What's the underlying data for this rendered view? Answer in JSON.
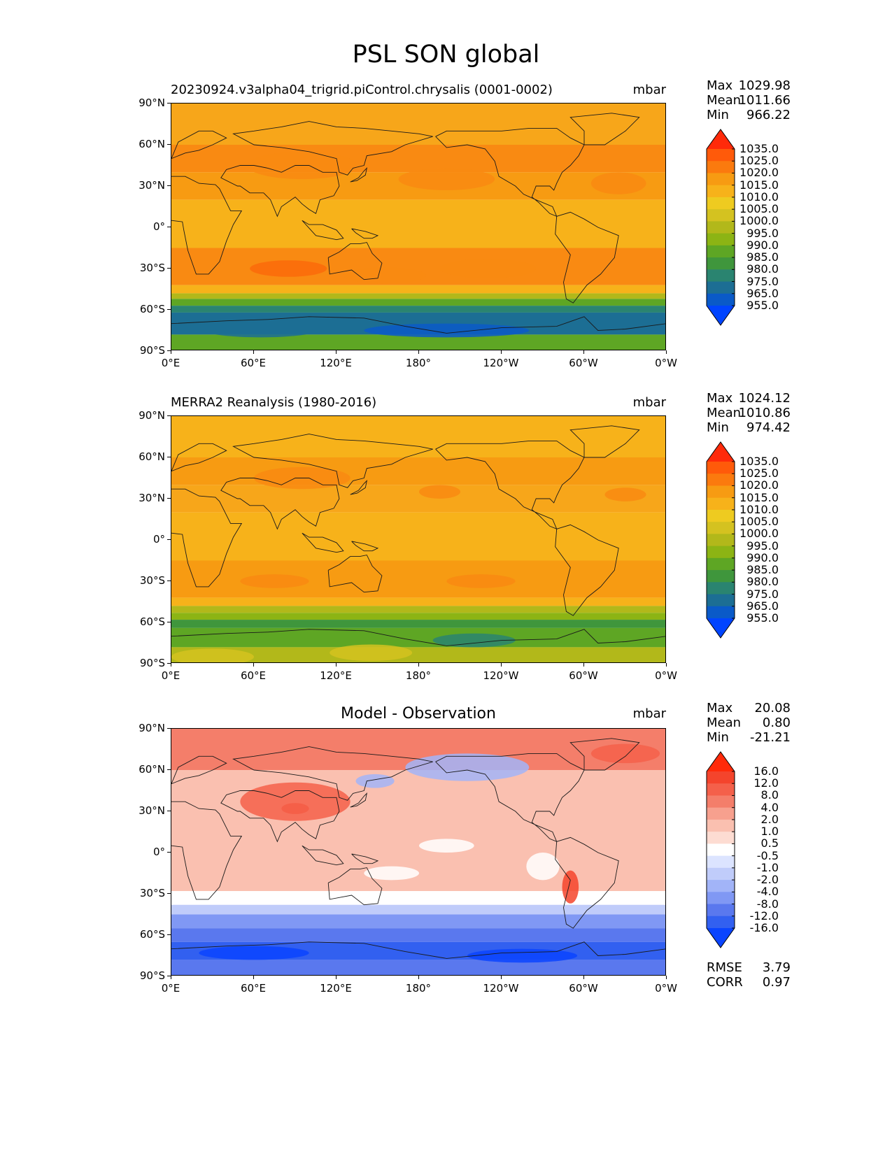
{
  "title": "PSL SON global",
  "x_ticks": [
    "0°E",
    "60°E",
    "120°E",
    "180°",
    "120°W",
    "60°W",
    "0°W"
  ],
  "y_ticks": [
    "90°N",
    "60°N",
    "30°N",
    "0°",
    "30°S",
    "60°S",
    "90°S"
  ],
  "stat_labels": {
    "max": "Max",
    "mean": "Mean",
    "min": "Min",
    "rmse": "RMSE",
    "corr": "CORR"
  },
  "panels": [
    {
      "id": "test",
      "title": "20230924.v3alpha04_trigrid.piControl.chrysalis (0001-0002)",
      "units": "mbar",
      "stats": {
        "max": "1029.98",
        "mean": "1011.66",
        "min": "966.22"
      },
      "colorbar": {
        "labels": [
          "1035.0",
          "1025.0",
          "1020.0",
          "1015.0",
          "1010.0",
          "1005.0",
          "1000.0",
          "995.0",
          "990.0",
          "985.0",
          "980.0",
          "975.0",
          "965.0",
          "955.0"
        ],
        "colors": [
          "#ff2a0a",
          "#ff5a0a",
          "#fb7a0e",
          "#f79b12",
          "#f7b21a",
          "#eecb20",
          "#d4c220",
          "#b2b81a",
          "#8cb414",
          "#5ea624",
          "#3f963c",
          "#2a8470",
          "#1c6e94",
          "#0a5ac8",
          "#0044ff"
        ]
      }
    },
    {
      "id": "ref",
      "title": "MERRA2 Reanalysis (1980-2016)",
      "units": "mbar",
      "stats": {
        "max": "1024.12",
        "mean": "1010.86",
        "min": "974.42"
      },
      "colorbar": {
        "labels": [
          "1035.0",
          "1025.0",
          "1020.0",
          "1015.0",
          "1010.0",
          "1005.0",
          "1000.0",
          "995.0",
          "990.0",
          "985.0",
          "980.0",
          "975.0",
          "965.0",
          "955.0"
        ],
        "colors": [
          "#ff2a0a",
          "#ff5a0a",
          "#fb7a0e",
          "#f79b12",
          "#f7b21a",
          "#eecb20",
          "#d4c220",
          "#b2b81a",
          "#8cb414",
          "#5ea624",
          "#3f963c",
          "#2a8470",
          "#1c6e94",
          "#0a5ac8",
          "#0044ff"
        ]
      }
    },
    {
      "id": "diff",
      "title": "Model - Observation",
      "units": "mbar",
      "stats": {
        "max": "20.08",
        "mean": "0.80",
        "min": "-21.21"
      },
      "rmse": "3.79",
      "corr": "0.97",
      "colorbar": {
        "labels": [
          "16.0",
          "12.0",
          "8.0",
          "4.0",
          "2.0",
          "1.0",
          "0.5",
          "-0.5",
          "-1.0",
          "-2.0",
          "-4.0",
          "-8.0",
          "-12.0",
          "-16.0"
        ],
        "colors": [
          "#ff2a0a",
          "#f4442c",
          "#f4604a",
          "#f47e6a",
          "#f7a08e",
          "#fac0b0",
          "#fddcd2",
          "#ffffff",
          "#dce4ff",
          "#c0ccfa",
          "#a2b4f8",
          "#8098f4",
          "#5a78ee",
          "#3260f0",
          "#0a44ff"
        ]
      }
    }
  ]
}
